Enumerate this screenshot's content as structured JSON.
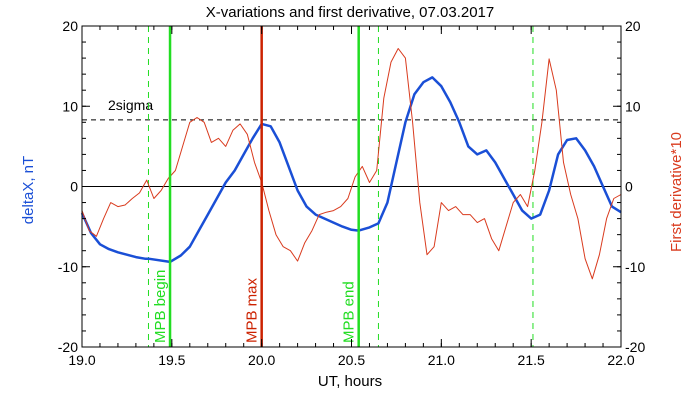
{
  "chart_data": {
    "type": "line",
    "title": "X-variations and first derivative, 07.03.2017",
    "xlabel": "UT, hours",
    "ylabel_left": "deltaX, nT",
    "ylabel_right": "First derivative*10",
    "xlim": [
      19.0,
      22.0
    ],
    "ylim_left": [
      -20,
      20
    ],
    "ylim_right": [
      -20,
      20
    ],
    "x_ticks": [
      "19.0",
      "19.5",
      "20.0",
      "20.5",
      "21.0",
      "21.5",
      "22.0"
    ],
    "y_ticks_left": [
      "20",
      "10",
      "0",
      "-10",
      "-20"
    ],
    "y_ticks_right": [
      "20",
      "10",
      "0",
      "-10",
      "-20"
    ],
    "colors": {
      "deltaX": "#1a4fd6",
      "derivative": "#d93b1e",
      "mpb": "#22dd22",
      "max": "#cc2200"
    },
    "threshold": {
      "label": "2sigma",
      "value": 8.3
    },
    "zero_line": 0,
    "vertical_markers": [
      {
        "label": "MPB begin",
        "x": 19.49,
        "color": "#22dd22",
        "style": "solid"
      },
      {
        "label": "MPB max",
        "x": 20.0,
        "color": "#cc2200",
        "style": "solid"
      },
      {
        "label": "MPB end",
        "x": 20.54,
        "color": "#22dd22",
        "style": "solid"
      }
    ],
    "dashed_markers": [
      19.37,
      20.65,
      21.51
    ],
    "series": [
      {
        "key": "deltaX",
        "axis": "left",
        "x": [
          19.0,
          19.05,
          19.1,
          19.15,
          19.2,
          19.25,
          19.3,
          19.35,
          19.37,
          19.49,
          19.55,
          19.6,
          19.65,
          19.7,
          19.75,
          19.8,
          19.85,
          19.9,
          19.95,
          20.0,
          20.05,
          20.1,
          20.15,
          20.2,
          20.25,
          20.3,
          20.35,
          20.4,
          20.45,
          20.5,
          20.54,
          20.6,
          20.65,
          20.7,
          20.75,
          20.8,
          20.85,
          20.9,
          20.95,
          21.0,
          21.05,
          21.1,
          21.15,
          21.2,
          21.25,
          21.3,
          21.35,
          21.4,
          21.45,
          21.5,
          21.55,
          21.6,
          21.65,
          21.7,
          21.75,
          21.8,
          21.85,
          21.9,
          21.95,
          22.0
        ],
        "y": [
          -3.3,
          -5.8,
          -7.2,
          -7.8,
          -8.2,
          -8.5,
          -8.8,
          -9.0,
          -9.0,
          -9.4,
          -8.6,
          -7.5,
          -5.5,
          -3.5,
          -1.5,
          0.5,
          2.0,
          4.0,
          6.0,
          7.8,
          7.5,
          5.5,
          2.5,
          -0.5,
          -2.5,
          -3.5,
          -4.0,
          -4.5,
          -5.0,
          -5.4,
          -5.5,
          -5.1,
          -4.6,
          -2.0,
          3.0,
          8.0,
          11.5,
          13.0,
          13.6,
          12.5,
          10.5,
          8.0,
          5.0,
          4.0,
          4.5,
          3.0,
          1.0,
          -1.0,
          -3.0,
          -4.0,
          -3.5,
          -0.5,
          4.0,
          5.8,
          6.0,
          4.5,
          2.5,
          0.0,
          -2.5,
          -3.2
        ]
      },
      {
        "key": "derivative",
        "axis": "right",
        "x": [
          19.0,
          19.04,
          19.08,
          19.12,
          19.16,
          19.2,
          19.24,
          19.28,
          19.32,
          19.36,
          19.4,
          19.44,
          19.48,
          19.52,
          19.56,
          19.6,
          19.64,
          19.68,
          19.72,
          19.76,
          19.8,
          19.84,
          19.88,
          19.92,
          19.96,
          20.0,
          20.04,
          20.08,
          20.12,
          20.16,
          20.2,
          20.24,
          20.28,
          20.32,
          20.36,
          20.4,
          20.44,
          20.48,
          20.52,
          20.56,
          20.6,
          20.64,
          20.68,
          20.72,
          20.76,
          20.8,
          20.84,
          20.88,
          20.92,
          20.96,
          21.0,
          21.04,
          21.08,
          21.12,
          21.16,
          21.2,
          21.24,
          21.28,
          21.32,
          21.36,
          21.4,
          21.44,
          21.48,
          21.52,
          21.56,
          21.6,
          21.64,
          21.68,
          21.72,
          21.76,
          21.8,
          21.84,
          21.88,
          21.92,
          21.96,
          22.0
        ],
        "y": [
          -3.0,
          -5.5,
          -6.2,
          -4.0,
          -2.0,
          -2.5,
          -2.3,
          -1.5,
          -0.8,
          0.8,
          -1.5,
          -0.5,
          1.0,
          2.0,
          5.0,
          8.0,
          8.6,
          8.0,
          5.5,
          6.0,
          5.0,
          7.0,
          7.8,
          6.5,
          3.0,
          0.5,
          -3.0,
          -6.0,
          -7.5,
          -8.0,
          -9.3,
          -7.0,
          -5.5,
          -3.5,
          -3.2,
          -3.0,
          -2.5,
          -1.5,
          1.2,
          2.5,
          0.5,
          2.0,
          11.0,
          15.5,
          17.2,
          16.0,
          8.0,
          -2.0,
          -8.5,
          -7.5,
          -2.0,
          -3.0,
          -2.5,
          -3.5,
          -3.5,
          -4.5,
          -4.0,
          -6.5,
          -8.0,
          -5.0,
          -2.0,
          -1.0,
          -2.5,
          2.0,
          8.0,
          15.9,
          12.0,
          3.0,
          -1.0,
          -4.0,
          -9.0,
          -11.5,
          -8.5,
          -4.0,
          -1.5,
          -1.0
        ]
      }
    ]
  }
}
